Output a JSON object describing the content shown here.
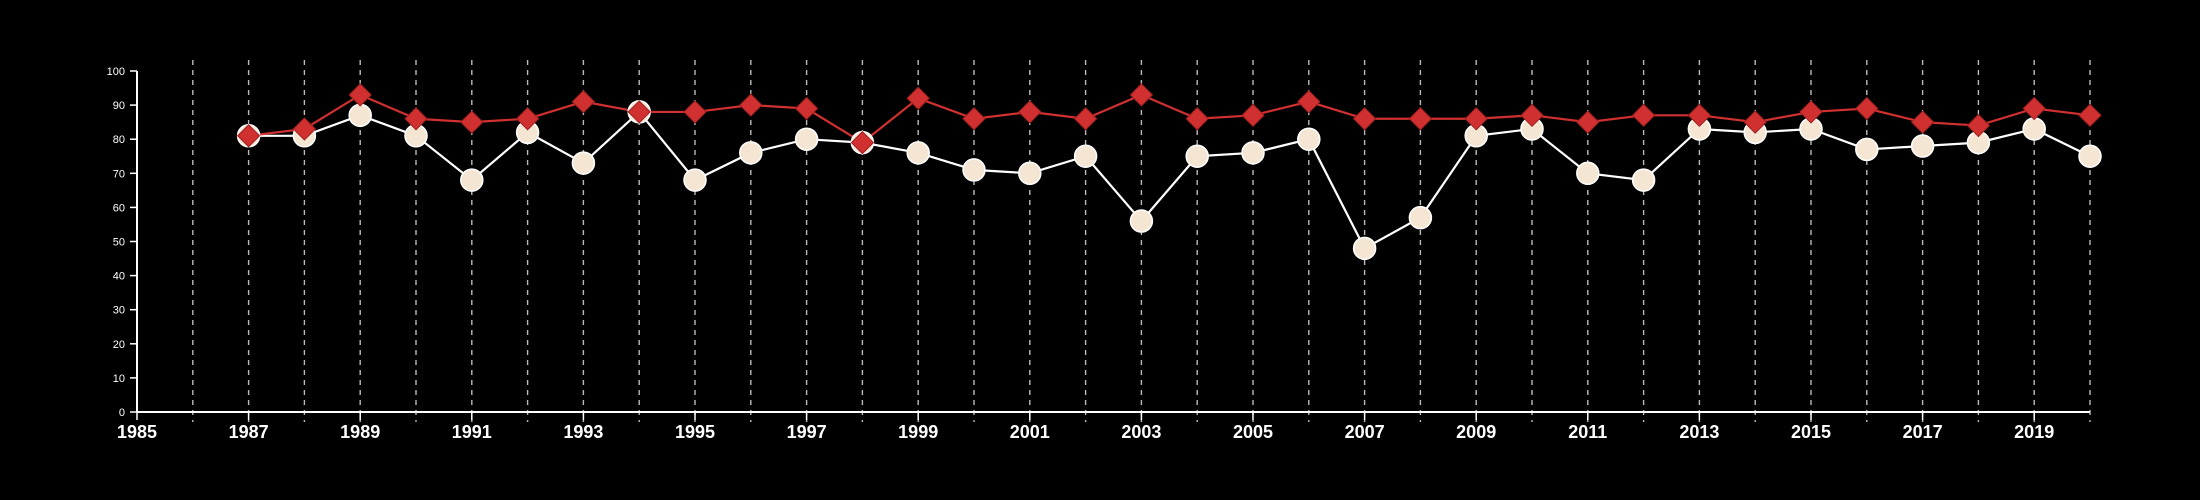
{
  "chart_data": {
    "type": "line",
    "x": [
      1987,
      1988,
      1989,
      1990,
      1991,
      1992,
      1993,
      1994,
      1995,
      1996,
      1997,
      1998,
      1999,
      2000,
      2001,
      2002,
      2003,
      2004,
      2005,
      2006,
      2007,
      2008,
      2009,
      2010,
      2011,
      2012,
      2013,
      2014,
      2015,
      2016,
      2017,
      2018,
      2019,
      2020
    ],
    "series": [
      {
        "marker": "circle",
        "color": "#ffffff",
        "fill": "#f5e6d3",
        "values": [
          81,
          81,
          87,
          81,
          68,
          82,
          73,
          88,
          68,
          76,
          80,
          79,
          76,
          71,
          70,
          75,
          56,
          75,
          76,
          80,
          48,
          57,
          81,
          83,
          70,
          68,
          83,
          82,
          83,
          77,
          78,
          79,
          83,
          75
        ]
      },
      {
        "marker": "diamond",
        "color": "#d03030",
        "fill": "#d03030",
        "values": [
          81,
          83,
          93,
          86,
          85,
          86,
          91,
          88,
          88,
          90,
          89,
          79,
          92,
          86,
          88,
          86,
          93,
          86,
          87,
          91,
          86,
          86,
          86,
          87,
          85,
          87,
          87,
          85,
          88,
          89,
          85,
          84,
          89,
          87
        ]
      }
    ],
    "xlim": [
      1985,
      2020
    ],
    "ylim": [
      0,
      100
    ],
    "x_tick_labels": [
      "1985",
      "1987",
      "1989",
      "1991",
      "1993",
      "1995",
      "1997",
      "1999",
      "2001",
      "2003",
      "2005",
      "2007",
      "2009",
      "2011",
      "2013",
      "2015",
      "2017",
      "2019"
    ],
    "y_tick_labels": [
      "0",
      "10",
      "20",
      "30",
      "40",
      "50",
      "60",
      "70",
      "80",
      "90",
      "100"
    ],
    "grid": "vertical dashed lines at every year",
    "title": "",
    "xlabel": "",
    "ylabel": "",
    "background": "#000000"
  }
}
